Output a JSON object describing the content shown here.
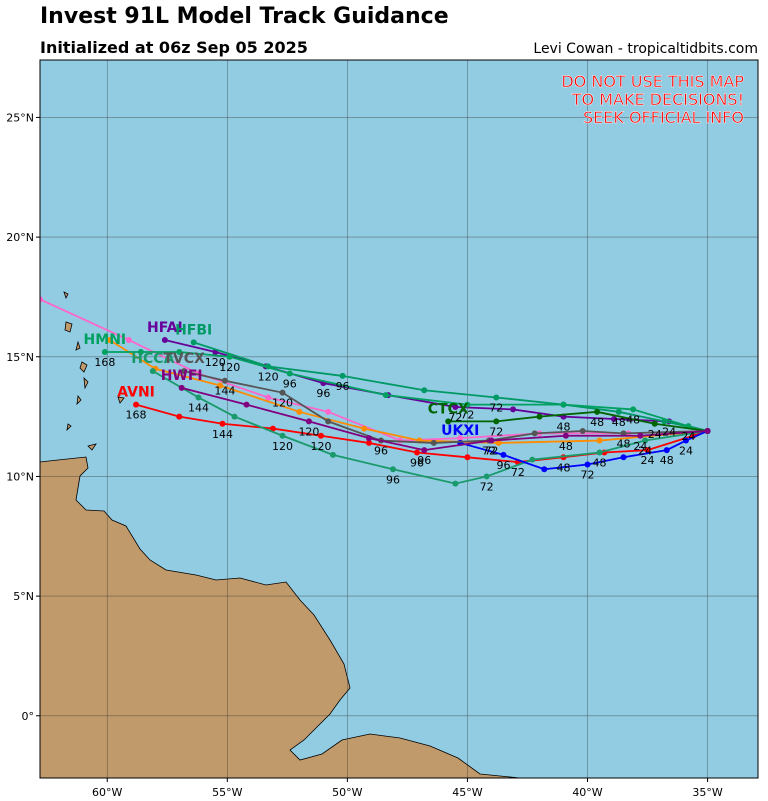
{
  "chart_data": {
    "type": "track",
    "title": "Invest 91L Model Track Guidance",
    "subtitle": "Initialized at 06z Sep 05 2025",
    "credit": "Levi Cowan - tropicaltidbits.com",
    "warning": [
      "DO NOT USE THIS MAP",
      "TO MAKE DECISIONS!",
      "SEEK OFFICIAL INFO"
    ],
    "xlim": [
      -62.8,
      -32.9
    ],
    "ylim": [
      -2.6,
      27.4
    ],
    "xticks": [
      {
        "value": -60,
        "label": "60°W"
      },
      {
        "value": -55,
        "label": "55°W"
      },
      {
        "value": -50,
        "label": "50°W"
      },
      {
        "value": -45,
        "label": "45°W"
      },
      {
        "value": -40,
        "label": "40°W"
      },
      {
        "value": -35,
        "label": "35°W"
      }
    ],
    "yticks": [
      {
        "value": 0,
        "label": "0°"
      },
      {
        "value": 5,
        "label": "5°N"
      },
      {
        "value": 10,
        "label": "10°N"
      },
      {
        "value": 15,
        "label": "15°N"
      },
      {
        "value": 20,
        "label": "20°N"
      },
      {
        "value": 25,
        "label": "25°N"
      }
    ],
    "grid": true,
    "series": [
      {
        "color": "#ff66cc",
        "x": [
          -35.0,
          -38.3,
          -42.0,
          -45.3,
          -47.8,
          -50.8,
          -53.3,
          -56.2,
          -59.1,
          -62.8
        ],
        "values": [
          11.9,
          11.8,
          11.8,
          11.6,
          11.5,
          12.7,
          13.3,
          14.3,
          15.7,
          17.4
        ]
      },
      {
        "color": "#ff8c00",
        "x": [
          -35.0,
          -39.5,
          -43.7,
          -47.0,
          -49.3,
          -52.0,
          -55.3,
          -58.0,
          -59.9
        ],
        "values": [
          11.9,
          11.5,
          11.4,
          11.5,
          12.0,
          12.7,
          13.8,
          14.5,
          15.7
        ]
      },
      {
        "name": "AVNI",
        "color": "#ff0000",
        "x": [
          -35.0,
          -35.6,
          -37.5,
          -39.3,
          -41.0,
          -42.9,
          -45.0,
          -47.1,
          -49.1,
          -51.1,
          -53.1,
          -55.2,
          -57.0,
          -58.8
        ],
        "values": [
          11.9,
          11.7,
          11.1,
          11.0,
          10.8,
          10.6,
          10.8,
          11.0,
          11.4,
          11.7,
          12.0,
          12.2,
          12.5,
          13.0
        ],
        "point_labels": [
          null,
          null,
          24,
          null,
          48,
          72,
          null,
          96,
          null,
          120,
          null,
          144,
          null,
          168
        ]
      },
      {
        "name": "HFAI",
        "color": "#660099",
        "x": [
          -35.0,
          -36.6,
          -38.9,
          -41.0,
          -43.1,
          -45.5,
          -48.3,
          -51.0,
          -53.4,
          -55.5,
          -57.6
        ],
        "values": [
          11.9,
          12.3,
          12.4,
          12.5,
          12.8,
          12.9,
          13.4,
          13.9,
          14.6,
          15.2,
          15.7
        ],
        "point_labels": [
          null,
          24,
          null,
          48,
          null,
          72,
          null,
          96,
          null,
          120,
          null
        ]
      },
      {
        "name": "HFBI",
        "color": "#009966",
        "x": [
          -35.0,
          -36.8,
          -38.7,
          -41.0,
          -43.8,
          -46.8,
          -50.2,
          -53.3,
          -56.4
        ],
        "values": [
          11.9,
          12.3,
          12.7,
          13.0,
          13.3,
          13.6,
          14.2,
          14.6,
          15.6
        ],
        "point_labels": [
          null,
          null,
          48,
          null,
          72,
          null,
          96,
          120,
          null
        ]
      },
      {
        "name": "HMNI",
        "color": "#00a060",
        "x": [
          -35.0,
          -35.8,
          -38.1,
          -41.0,
          -45.0,
          -48.4,
          -52.4,
          -54.9,
          -57.0,
          -58.6,
          -60.1
        ],
        "values": [
          11.9,
          12.1,
          12.8,
          13.0,
          13.0,
          13.4,
          14.3,
          15.0,
          15.2,
          15.2,
          15.2
        ],
        "point_labels": [
          null,
          24,
          48,
          null,
          72,
          null,
          96,
          120,
          null,
          null,
          168
        ]
      },
      {
        "name": "HCCA",
        "color": "#1a9a6a",
        "x": [
          -35.0,
          -37.6,
          -39.5,
          -42.3,
          -44.2,
          -45.5,
          -48.1,
          -50.6,
          -52.7,
          -54.7,
          -56.2,
          -58.1
        ],
        "values": [
          11.9,
          11.5,
          11.0,
          10.7,
          10.0,
          9.7,
          10.3,
          10.9,
          11.7,
          12.5,
          13.3,
          14.4
        ],
        "point_labels": [
          null,
          24,
          48,
          null,
          72,
          null,
          96,
          null,
          120,
          null,
          144,
          null
        ]
      },
      {
        "name": "UKXI",
        "color": "#0000ff",
        "x": [
          -35.0,
          -35.9,
          -36.7,
          -38.5,
          -40.0,
          -41.8,
          -43.5,
          -45.3
        ],
        "values": [
          11.9,
          11.5,
          11.1,
          10.8,
          10.5,
          10.3,
          10.9,
          11.4
        ],
        "point_labels": [
          null,
          24,
          48,
          null,
          72,
          null,
          96,
          null
        ]
      },
      {
        "name": "CTCX",
        "color": "#006400",
        "x": [
          -35.0,
          -37.2,
          -39.6,
          -42.0,
          -43.8,
          -45.8
        ],
        "values": [
          11.9,
          12.2,
          12.7,
          12.5,
          12.3,
          12.3
        ],
        "point_labels": [
          null,
          24,
          48,
          null,
          72,
          null
        ]
      },
      {
        "name": "TVCX",
        "color": "#555555",
        "x": [
          -35.0,
          -38.5,
          -40.2,
          -42.2,
          -44.1,
          -46.4,
          -48.6,
          -50.8,
          -52.7,
          -55.1,
          -56.8
        ],
        "values": [
          11.9,
          11.8,
          11.9,
          11.8,
          11.5,
          11.4,
          11.5,
          12.3,
          13.5,
          14.0,
          14.4
        ],
        "point_labels": [
          null,
          48,
          null,
          null,
          72,
          null,
          96,
          null,
          120,
          144,
          null
        ]
      },
      {
        "name": "HWFI",
        "color": "#800080",
        "x": [
          -35.0,
          -37.8,
          -40.9,
          -44.0,
          -46.8,
          -49.1,
          -51.6,
          -54.2,
          -56.9
        ],
        "values": [
          11.9,
          11.7,
          11.7,
          11.5,
          11.1,
          11.6,
          12.3,
          13.0,
          13.7
        ],
        "point_labels": [
          null,
          24,
          48,
          72,
          96,
          null,
          120,
          null,
          null
        ]
      }
    ]
  }
}
